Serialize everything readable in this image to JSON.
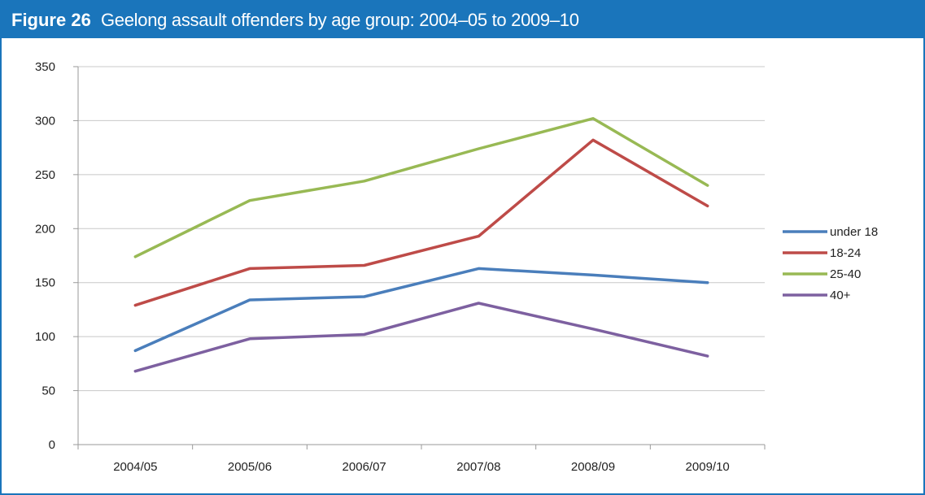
{
  "figure": {
    "label": "Figure 26",
    "title": "Geelong assault offenders by age group: 2004–05 to 2009–10"
  },
  "chart_data": {
    "type": "line",
    "title": "",
    "xlabel": "",
    "ylabel": "",
    "categories": [
      "2004/05",
      "2005/06",
      "2006/07",
      "2007/08",
      "2008/09",
      "2009/10"
    ],
    "ylim": [
      0,
      350
    ],
    "yticks": [
      0,
      50,
      100,
      150,
      200,
      250,
      300,
      350
    ],
    "grid": true,
    "legend_position": "right",
    "series": [
      {
        "name": "under 18",
        "color": "#4a7ebb",
        "values": [
          87,
          134,
          137,
          163,
          157,
          150
        ]
      },
      {
        "name": "18-24",
        "color": "#be4b48",
        "values": [
          129,
          163,
          166,
          193,
          282,
          221
        ]
      },
      {
        "name": "25-40",
        "color": "#98b954",
        "values": [
          174,
          226,
          244,
          274,
          302,
          240
        ]
      },
      {
        "name": "40+",
        "color": "#7d60a0",
        "values": [
          68,
          98,
          102,
          131,
          107,
          82
        ]
      }
    ]
  }
}
